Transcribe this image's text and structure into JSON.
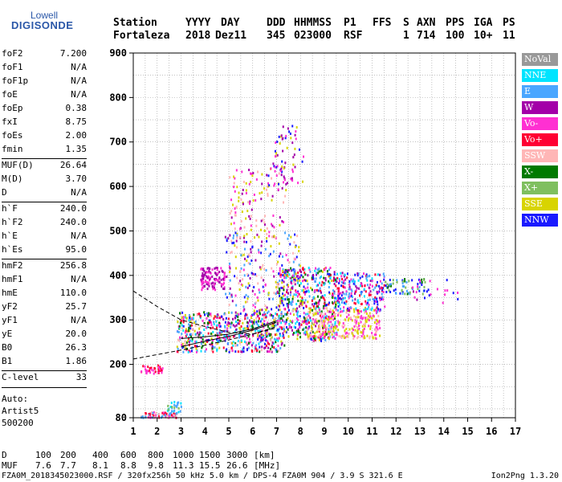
{
  "logo": {
    "top": "Lowell",
    "main": "DIGISONDE"
  },
  "header": {
    "labels": [
      "Station",
      "YYYY",
      "DAY",
      "DDD",
      "HHMMSS",
      "P1",
      "FFS",
      "S",
      "AXN",
      "PPS",
      "IGA",
      "PS"
    ],
    "values": [
      "Fortaleza",
      "2018",
      "Dez11",
      "345",
      "023000",
      "RSF",
      "",
      "1",
      "714",
      "100",
      "10+",
      "11"
    ]
  },
  "params": {
    "group1": [
      {
        "k": "foF2",
        "v": "7.200"
      },
      {
        "k": "foF1",
        "v": "N/A"
      },
      {
        "k": "foF1p",
        "v": "N/A"
      },
      {
        "k": "foE",
        "v": "N/A"
      },
      {
        "k": "foEp",
        "v": "0.38"
      },
      {
        "k": "fxI",
        "v": "8.75"
      },
      {
        "k": "foEs",
        "v": "2.00"
      },
      {
        "k": "fmin",
        "v": "1.35"
      }
    ],
    "group2": [
      {
        "k": "MUF(D)",
        "v": "26.64"
      },
      {
        "k": "M(D)",
        "v": "3.70"
      },
      {
        "k": "D",
        "v": "N/A"
      }
    ],
    "group3": [
      {
        "k": "h`F",
        "v": "240.0"
      },
      {
        "k": "h`F2",
        "v": "240.0"
      },
      {
        "k": "h`E",
        "v": "N/A"
      },
      {
        "k": "h`Es",
        "v": "95.0"
      }
    ],
    "group4": [
      {
        "k": "hmF2",
        "v": "256.8"
      },
      {
        "k": "hmF1",
        "v": "N/A"
      },
      {
        "k": "hmE",
        "v": "110.0"
      },
      {
        "k": "yF2",
        "v": "25.7"
      },
      {
        "k": "yF1",
        "v": "N/A"
      },
      {
        "k": "yE",
        "v": "20.0"
      },
      {
        "k": "B0",
        "v": "26.3"
      },
      {
        "k": "B1",
        "v": "1.86"
      }
    ],
    "group5": [
      {
        "k": "C-level",
        "v": "33"
      }
    ],
    "auto": [
      "Auto:",
      "Artist5",
      "500200"
    ]
  },
  "legend": [
    {
      "label": "NoVal",
      "color": "#999999"
    },
    {
      "label": "NNE",
      "color": "#00e4ff"
    },
    {
      "label": "E",
      "color": "#4aa6ff"
    },
    {
      "label": "W",
      "color": "#a300a8"
    },
    {
      "label": "Vo-",
      "color": "#ff30d2"
    },
    {
      "label": "Vo+",
      "color": "#ff0033"
    },
    {
      "label": "SSW",
      "color": "#ffb6b6"
    },
    {
      "label": "X-",
      "color": "#007a00"
    },
    {
      "label": "X+",
      "color": "#7fbf5f"
    },
    {
      "label": "SSE",
      "color": "#d8d400"
    },
    {
      "label": "NNW",
      "color": "#1a1aff"
    }
  ],
  "footer": {
    "d_label": "D",
    "d_values": [
      "100",
      "200",
      "400",
      "600",
      "800",
      "1000",
      "1500",
      "3000",
      "[km]"
    ],
    "muf_label": "MUF",
    "muf_values": [
      "7.6",
      "7.7",
      "8.1",
      "8.8",
      "9.8",
      "11.3",
      "15.5",
      "26.6",
      "[MHz]"
    ],
    "bottom_left": "FZA0M_2018345023000.RSF / 320fx256h 50 kHz 5.0 km / DPS-4 FZA0M 904 / 3.9 S 321.6 E",
    "bottom_right": "Ion2Png 1.3.20"
  },
  "chart_data": {
    "type": "scatter",
    "x_label": "",
    "y_label": "",
    "xlim": [
      1,
      17
    ],
    "ylim": [
      80,
      900
    ],
    "x_ticks": [
      1,
      2,
      3,
      4,
      5,
      6,
      7,
      8,
      9,
      10,
      11,
      12,
      13,
      14,
      15,
      16,
      17
    ],
    "y_ticks": [
      80,
      200,
      300,
      400,
      500,
      600,
      700,
      800,
      900
    ],
    "grid": true,
    "legend_position": "right",
    "clusters": [
      {
        "fmin": 1.3,
        "fmax": 2.2,
        "hmin": 180,
        "hmax": 200,
        "count": 40,
        "colors": [
          "#ff0033",
          "#ff30d2"
        ]
      },
      {
        "fmin": 1.3,
        "fmax": 2.8,
        "hmin": 82,
        "hmax": 95,
        "count": 80,
        "colors": [
          "#ff30d2",
          "#ff0033",
          "#ffb6b6",
          "#4aa6ff"
        ]
      },
      {
        "fmin": 2.4,
        "fmax": 3.0,
        "hmin": 95,
        "hmax": 120,
        "count": 25,
        "colors": [
          "#00e4ff",
          "#4aa6ff",
          "#7fbf5f"
        ]
      },
      {
        "fmin": 2.8,
        "fmax": 7.3,
        "hmin": 230,
        "hmax": 320,
        "count": 600,
        "colors": [
          "#ff30d2",
          "#ff0033",
          "#4aa6ff",
          "#d8d400",
          "#ffb6b6",
          "#a300a8",
          "#1a1aff",
          "#007a00",
          "#00e4ff"
        ]
      },
      {
        "fmin": 7.0,
        "fmax": 9.5,
        "hmin": 255,
        "hmax": 420,
        "count": 500,
        "colors": [
          "#ff0033",
          "#ff30d2",
          "#1a1aff",
          "#d8d400",
          "#4aa6ff",
          "#a300a8",
          "#00e4ff",
          "#007a00"
        ]
      },
      {
        "fmin": 8.2,
        "fmax": 11.3,
        "hmin": 260,
        "hmax": 330,
        "count": 300,
        "colors": [
          "#d8d400",
          "#ffb6b6",
          "#ff30d2"
        ]
      },
      {
        "fmin": 9.5,
        "fmax": 11.5,
        "hmin": 320,
        "hmax": 410,
        "count": 220,
        "colors": [
          "#1a1aff",
          "#ff0033",
          "#a300a8",
          "#00e4ff",
          "#4aa6ff",
          "#ff30d2"
        ]
      },
      {
        "fmin": 3.8,
        "fmax": 4.8,
        "hmin": 370,
        "hmax": 420,
        "count": 110,
        "colors": [
          "#a300a8",
          "#ff30d2"
        ]
      },
      {
        "fmin": 4.8,
        "fmax": 8.0,
        "hmin": 320,
        "hmax": 500,
        "count": 260,
        "colors": [
          "#4aa6ff",
          "#a300a8",
          "#ff30d2",
          "#1a1aff",
          "#ffb6b6",
          "#d8d400"
        ]
      },
      {
        "fmin": 5.0,
        "fmax": 7.4,
        "hmin": 500,
        "hmax": 650,
        "count": 110,
        "colors": [
          "#d8d400",
          "#ffb6b6",
          "#ff30d2",
          "#a300a8"
        ]
      },
      {
        "fmin": 6.6,
        "fmax": 8.1,
        "hmin": 600,
        "hmax": 740,
        "count": 70,
        "colors": [
          "#a300a8",
          "#ff30d2",
          "#1a1aff",
          "#d8d400"
        ]
      },
      {
        "fmin": 11.5,
        "fmax": 13.2,
        "hmin": 360,
        "hmax": 395,
        "count": 60,
        "colors": [
          "#007a00",
          "#7fbf5f",
          "#1a1aff",
          "#4aa6ff"
        ]
      },
      {
        "fmin": 12.5,
        "fmax": 14.6,
        "hmin": 340,
        "hmax": 395,
        "count": 25,
        "colors": [
          "#ff30d2",
          "#1a1aff",
          "#a300a8"
        ]
      }
    ],
    "curves": [
      {
        "style": "dashed",
        "points": [
          [
            1,
            365
          ],
          [
            2,
            330
          ],
          [
            3,
            300
          ],
          [
            4,
            285
          ],
          [
            5,
            272
          ],
          [
            6,
            268
          ],
          [
            7,
            282
          ]
        ]
      },
      {
        "style": "dashed",
        "points": [
          [
            1,
            212
          ],
          [
            2,
            222
          ],
          [
            3,
            232
          ],
          [
            4,
            243
          ],
          [
            5,
            255
          ],
          [
            6,
            268
          ],
          [
            7,
            285
          ]
        ]
      },
      {
        "style": "solid",
        "points": [
          [
            3,
            240
          ],
          [
            4,
            252
          ],
          [
            5,
            263
          ],
          [
            6,
            277
          ],
          [
            7,
            295
          ]
        ]
      },
      {
        "style": "solid",
        "points": [
          [
            3,
            258
          ],
          [
            4,
            262
          ],
          [
            5,
            268
          ],
          [
            6,
            280
          ],
          [
            7,
            298
          ]
        ]
      }
    ]
  }
}
